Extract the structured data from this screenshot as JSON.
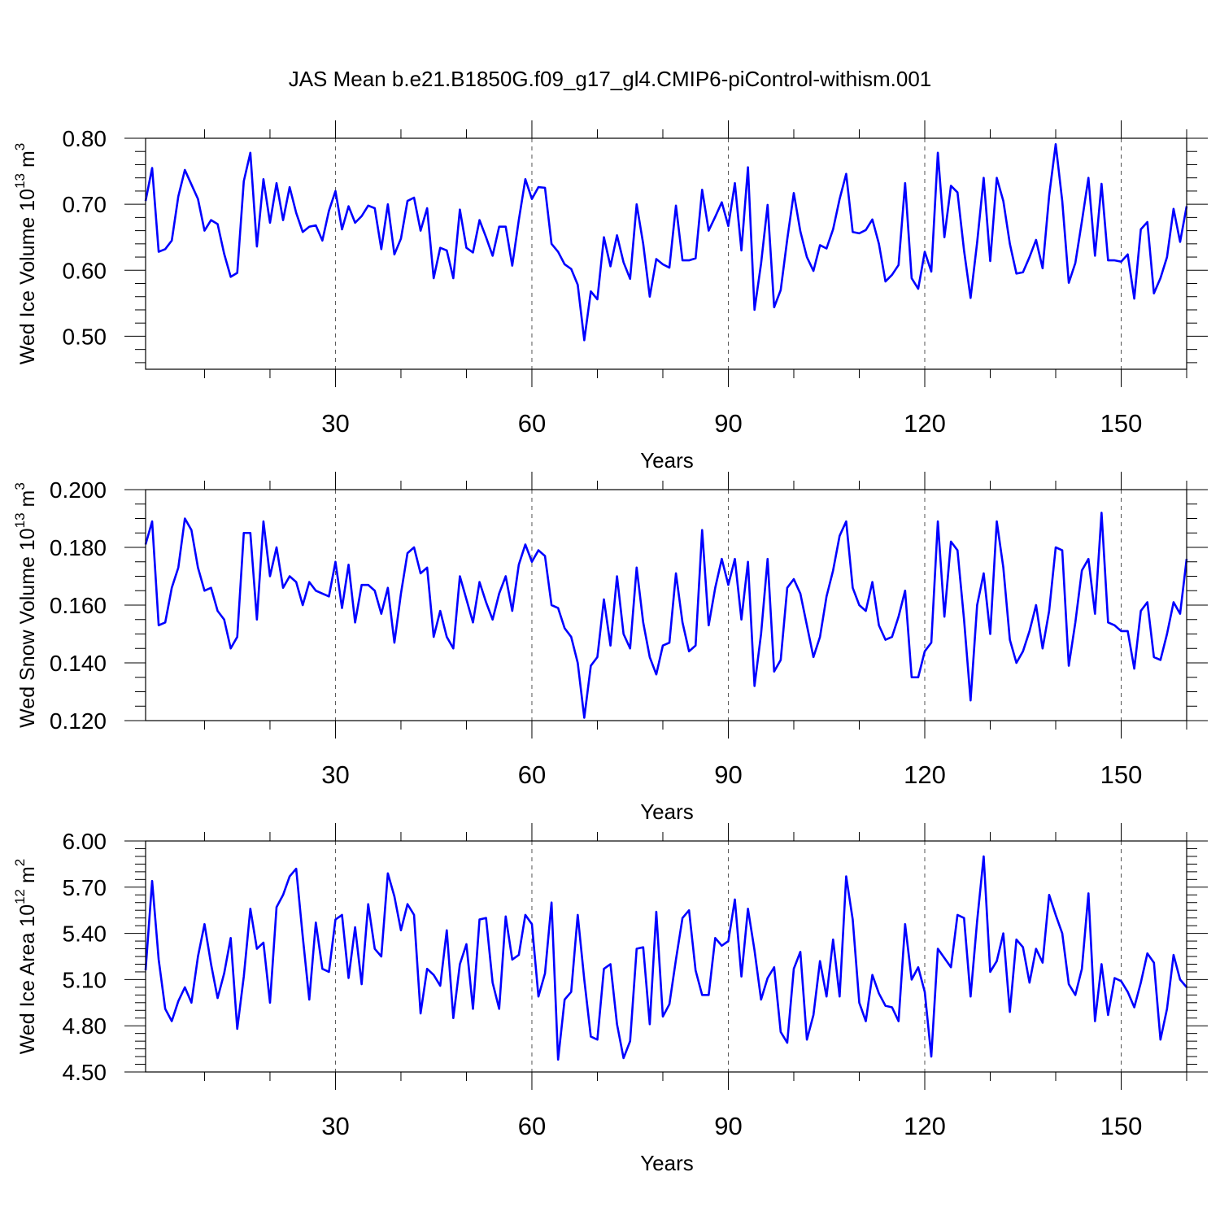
{
  "title": "JAS Mean b.e21.B1850G.f09_g17_gl4.CMIP6-piControl-withism.001",
  "chart_data": [
    {
      "type": "line",
      "ylabel": "Wed Ice Volume 10",
      "ylabel_exp": "13",
      "ylabel_unit": " m",
      "ylabel_unit_exp": "3",
      "xlabel": "Years",
      "xlim": [
        1,
        160
      ],
      "ylim": [
        0.45,
        0.8
      ],
      "xticks": [
        30,
        60,
        90,
        120,
        150
      ],
      "xtick_labels": [
        "30",
        "60",
        "90",
        "120",
        "150"
      ],
      "yticks": [
        0.5,
        0.6,
        0.7,
        0.8
      ],
      "ytick_labels": [
        "0.50",
        "0.60",
        "0.70",
        "0.80"
      ],
      "grid": "vertical dashed at major x ticks",
      "series": [
        {
          "color": "#0000ff",
          "x_start": 1,
          "values": [
            0.705,
            0.755,
            0.628,
            0.632,
            0.645,
            0.712,
            0.752,
            0.73,
            0.708,
            0.66,
            0.676,
            0.67,
            0.625,
            0.59,
            0.596,
            0.735,
            0.778,
            0.636,
            0.738,
            0.672,
            0.732,
            0.676,
            0.726,
            0.687,
            0.658,
            0.666,
            0.668,
            0.645,
            0.69,
            0.72,
            0.662,
            0.697,
            0.672,
            0.682,
            0.698,
            0.694,
            0.632,
            0.7,
            0.624,
            0.648,
            0.705,
            0.71,
            0.66,
            0.694,
            0.588,
            0.634,
            0.63,
            0.588,
            0.692,
            0.634,
            0.627,
            0.676,
            0.65,
            0.622,
            0.666,
            0.666,
            0.607,
            0.676,
            0.738,
            0.708,
            0.726,
            0.725,
            0.64,
            0.628,
            0.609,
            0.602,
            0.578,
            0.494,
            0.568,
            0.556,
            0.65,
            0.606,
            0.653,
            0.612,
            0.587,
            0.7,
            0.64,
            0.56,
            0.617,
            0.609,
            0.604,
            0.698,
            0.615,
            0.615,
            0.618,
            0.722,
            0.66,
            0.681,
            0.703,
            0.667,
            0.732,
            0.63,
            0.756,
            0.54,
            0.61,
            0.699,
            0.544,
            0.57,
            0.647,
            0.717,
            0.659,
            0.62,
            0.599,
            0.638,
            0.633,
            0.662,
            0.708,
            0.746,
            0.658,
            0.656,
            0.661,
            0.677,
            0.64,
            0.583,
            0.593,
            0.608,
            0.732,
            0.588,
            0.572,
            0.628,
            0.598,
            0.778,
            0.65,
            0.728,
            0.718,
            0.63,
            0.558,
            0.642,
            0.74,
            0.614,
            0.74,
            0.705,
            0.64,
            0.595,
            0.597,
            0.62,
            0.646,
            0.603,
            0.713,
            0.791,
            0.705,
            0.581,
            0.611,
            0.674,
            0.74,
            0.622,
            0.731,
            0.615,
            0.615,
            0.613,
            0.624,
            0.557,
            0.662,
            0.673,
            0.565,
            0.588,
            0.62,
            0.693,
            0.643,
            0.697
          ]
        }
      ]
    },
    {
      "type": "line",
      "ylabel": "Wed Snow Volume 10",
      "ylabel_exp": "13",
      "ylabel_unit": " m",
      "ylabel_unit_exp": "3",
      "xlabel": "Years",
      "xlim": [
        1,
        160
      ],
      "ylim": [
        0.12,
        0.2
      ],
      "xticks": [
        30,
        60,
        90,
        120,
        150
      ],
      "xtick_labels": [
        "30",
        "60",
        "90",
        "120",
        "150"
      ],
      "yticks": [
        0.12,
        0.14,
        0.16,
        0.18,
        0.2
      ],
      "ytick_labels": [
        "0.120",
        "0.140",
        "0.160",
        "0.180",
        "0.200"
      ],
      "grid": "vertical dashed at major x ticks",
      "series": [
        {
          "color": "#0000ff",
          "x_start": 1,
          "values": [
            0.181,
            0.189,
            0.153,
            0.154,
            0.166,
            0.173,
            0.19,
            0.186,
            0.173,
            0.165,
            0.166,
            0.158,
            0.155,
            0.145,
            0.149,
            0.185,
            0.185,
            0.155,
            0.189,
            0.17,
            0.18,
            0.166,
            0.17,
            0.168,
            0.16,
            0.168,
            0.165,
            0.164,
            0.163,
            0.175,
            0.159,
            0.174,
            0.154,
            0.167,
            0.167,
            0.165,
            0.157,
            0.166,
            0.147,
            0.164,
            0.178,
            0.18,
            0.171,
            0.173,
            0.149,
            0.158,
            0.149,
            0.145,
            0.17,
            0.162,
            0.154,
            0.168,
            0.161,
            0.155,
            0.164,
            0.17,
            0.158,
            0.174,
            0.181,
            0.175,
            0.179,
            0.177,
            0.16,
            0.159,
            0.152,
            0.149,
            0.14,
            0.121,
            0.139,
            0.142,
            0.162,
            0.146,
            0.17,
            0.15,
            0.145,
            0.173,
            0.154,
            0.142,
            0.136,
            0.146,
            0.147,
            0.171,
            0.154,
            0.144,
            0.146,
            0.186,
            0.153,
            0.166,
            0.176,
            0.167,
            0.176,
            0.155,
            0.175,
            0.132,
            0.15,
            0.176,
            0.137,
            0.141,
            0.166,
            0.169,
            0.164,
            0.153,
            0.142,
            0.149,
            0.163,
            0.172,
            0.184,
            0.189,
            0.166,
            0.16,
            0.158,
            0.168,
            0.153,
            0.148,
            0.149,
            0.156,
            0.165,
            0.135,
            0.135,
            0.144,
            0.147,
            0.189,
            0.156,
            0.182,
            0.179,
            0.155,
            0.127,
            0.16,
            0.171,
            0.15,
            0.189,
            0.173,
            0.148,
            0.14,
            0.144,
            0.151,
            0.16,
            0.145,
            0.158,
            0.18,
            0.179,
            0.139,
            0.154,
            0.172,
            0.176,
            0.157,
            0.192,
            0.154,
            0.153,
            0.151,
            0.151,
            0.138,
            0.158,
            0.161,
            0.142,
            0.141,
            0.15,
            0.161,
            0.157,
            0.176
          ]
        }
      ]
    },
    {
      "type": "line",
      "ylabel": "Wed Ice Area 10",
      "ylabel_exp": "12",
      "ylabel_unit": " m",
      "ylabel_unit_exp": "2",
      "xlabel": "Years",
      "xlim": [
        1,
        160
      ],
      "ylim": [
        4.5,
        6.0
      ],
      "xticks": [
        30,
        60,
        90,
        120,
        150
      ],
      "xtick_labels": [
        "30",
        "60",
        "90",
        "120",
        "150"
      ],
      "yticks": [
        4.5,
        4.8,
        5.1,
        5.4,
        5.7,
        6.0
      ],
      "ytick_labels": [
        "4.50",
        "4.80",
        "5.10",
        "5.40",
        "5.70",
        "6.00"
      ],
      "grid": "vertical dashed at major x ticks",
      "series": [
        {
          "color": "#0000ff",
          "x_start": 1,
          "values": [
            5.16,
            5.74,
            5.23,
            4.91,
            4.83,
            4.96,
            5.05,
            4.95,
            5.25,
            5.46,
            5.2,
            4.98,
            5.14,
            5.37,
            4.78,
            5.12,
            5.56,
            5.3,
            5.34,
            4.95,
            5.57,
            5.65,
            5.77,
            5.82,
            5.38,
            4.97,
            5.47,
            5.17,
            5.15,
            5.49,
            5.52,
            5.11,
            5.44,
            5.07,
            5.59,
            5.3,
            5.25,
            5.79,
            5.64,
            5.42,
            5.59,
            5.52,
            4.88,
            5.17,
            5.13,
            5.06,
            5.42,
            4.85,
            5.2,
            5.33,
            4.91,
            5.49,
            5.5,
            5.08,
            4.91,
            5.51,
            5.23,
            5.26,
            5.52,
            5.46,
            4.99,
            5.14,
            5.6,
            4.58,
            4.97,
            5.02,
            5.52,
            5.1,
            4.73,
            4.71,
            5.17,
            5.2,
            4.81,
            4.59,
            4.7,
            5.3,
            5.31,
            4.81,
            5.54,
            4.86,
            4.94,
            5.23,
            5.5,
            5.55,
            5.16,
            5.0,
            5.0,
            5.37,
            5.32,
            5.35,
            5.62,
            5.12,
            5.56,
            5.29,
            4.97,
            5.11,
            5.18,
            4.76,
            4.69,
            5.17,
            5.28,
            4.71,
            4.87,
            5.22,
            4.99,
            5.36,
            4.99,
            5.77,
            5.49,
            4.95,
            4.83,
            5.13,
            5.01,
            4.93,
            4.92,
            4.83,
            5.46,
            5.1,
            5.18,
            5.02,
            4.6,
            5.3,
            5.24,
            5.18,
            5.52,
            5.5,
            4.99,
            5.48,
            5.9,
            5.15,
            5.22,
            5.4,
            4.89,
            5.36,
            5.31,
            5.08,
            5.3,
            5.21,
            5.65,
            5.52,
            5.4,
            5.07,
            5.0,
            5.17,
            5.66,
            4.83,
            5.2,
            4.87,
            5.11,
            5.09,
            5.02,
            4.92,
            5.08,
            5.27,
            5.21,
            4.71,
            4.91,
            5.26,
            5.1,
            5.05
          ]
        }
      ]
    }
  ]
}
